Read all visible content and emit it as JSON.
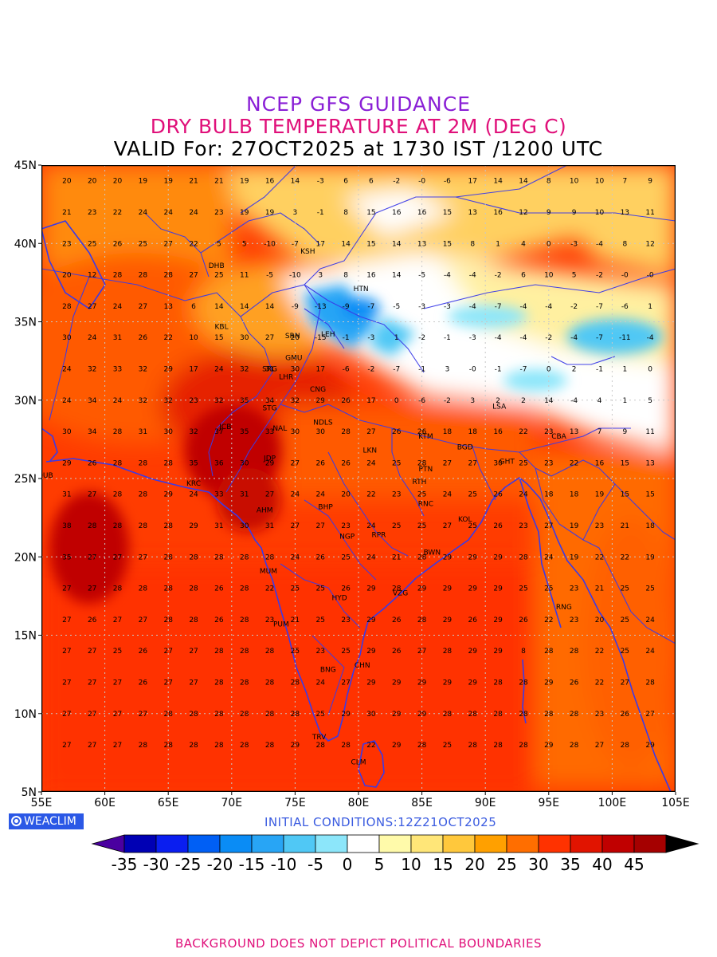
{
  "header": {
    "line1": "NCEP GFS GUIDANCE",
    "line2": "DRY BULB TEMPERATURE AT 2M (DEG C)",
    "line3": "VALID For: 27OCT2025 at 1730 IST /1200 UTC"
  },
  "axes": {
    "lat_labels": [
      "45N",
      "40N",
      "35N",
      "30N",
      "25N",
      "20N",
      "15N",
      "10N",
      "5N"
    ],
    "lon_labels": [
      "55E",
      "60E",
      "65E",
      "70E",
      "75E",
      "80E",
      "85E",
      "90E",
      "95E",
      "100E",
      "105E"
    ],
    "lat_range": [
      5,
      45
    ],
    "lon_range": [
      55,
      105
    ],
    "grid": "dotted"
  },
  "stations": [
    {
      "code": "KSH",
      "lon": 76.0,
      "lat": 39.5
    },
    {
      "code": "DHB",
      "lon": 68.8,
      "lat": 38.6
    },
    {
      "code": "HTN",
      "lon": 80.2,
      "lat": 37.1
    },
    {
      "code": "KBL",
      "lon": 69.2,
      "lat": 34.7
    },
    {
      "code": "LEH",
      "lon": 77.6,
      "lat": 34.2
    },
    {
      "code": "SRN",
      "lon": 74.8,
      "lat": 34.1
    },
    {
      "code": "GMU",
      "lon": 74.9,
      "lat": 32.7
    },
    {
      "code": "SRG",
      "lon": 73.0,
      "lat": 32.0
    },
    {
      "code": "LHR",
      "lon": 74.3,
      "lat": 31.5
    },
    {
      "code": "CNG",
      "lon": 76.8,
      "lat": 30.7
    },
    {
      "code": "STG",
      "lon": 73.0,
      "lat": 29.5
    },
    {
      "code": "LSA",
      "lon": 91.1,
      "lat": 29.6
    },
    {
      "code": "NDLS",
      "lon": 77.2,
      "lat": 28.6
    },
    {
      "code": "JCB",
      "lon": 69.5,
      "lat": 28.3
    },
    {
      "code": "NAL",
      "lon": 73.8,
      "lat": 28.2
    },
    {
      "code": "KTM",
      "lon": 85.3,
      "lat": 27.7
    },
    {
      "code": "CBA",
      "lon": 95.8,
      "lat": 27.7
    },
    {
      "code": "BGD",
      "lon": 88.4,
      "lat": 27.0
    },
    {
      "code": "LKN",
      "lon": 80.9,
      "lat": 26.8
    },
    {
      "code": "JDP",
      "lon": 73.0,
      "lat": 26.3
    },
    {
      "code": "GHT",
      "lon": 91.7,
      "lat": 26.1
    },
    {
      "code": "PTN",
      "lon": 85.3,
      "lat": 25.6
    },
    {
      "code": "DUB",
      "lon": 55.3,
      "lat": 25.2
    },
    {
      "code": "KRC",
      "lon": 67.0,
      "lat": 24.7
    },
    {
      "code": "RTH",
      "lon": 84.8,
      "lat": 24.8
    },
    {
      "code": "BHP",
      "lon": 77.4,
      "lat": 23.2
    },
    {
      "code": "AHM",
      "lon": 72.6,
      "lat": 23.0
    },
    {
      "code": "RNC",
      "lon": 85.3,
      "lat": 23.4
    },
    {
      "code": "KOL",
      "lon": 88.4,
      "lat": 22.4
    },
    {
      "code": "NGP",
      "lon": 79.1,
      "lat": 21.3
    },
    {
      "code": "RPR",
      "lon": 81.6,
      "lat": 21.4
    },
    {
      "code": "BWN",
      "lon": 85.8,
      "lat": 20.3
    },
    {
      "code": "MUM",
      "lon": 72.9,
      "lat": 19.1
    },
    {
      "code": "HYD",
      "lon": 78.5,
      "lat": 17.4
    },
    {
      "code": "VZG",
      "lon": 83.3,
      "lat": 17.7
    },
    {
      "code": "RNG",
      "lon": 96.2,
      "lat": 16.8
    },
    {
      "code": "PUM",
      "lon": 73.9,
      "lat": 15.7
    },
    {
      "code": "CHN",
      "lon": 80.3,
      "lat": 13.1
    },
    {
      "code": "BNG",
      "lon": 77.6,
      "lat": 12.8
    },
    {
      "code": "TRV",
      "lon": 76.9,
      "lat": 8.5
    },
    {
      "code": "CLM",
      "lon": 80.0,
      "lat": 6.9
    }
  ],
  "field_grid": {
    "lon_start": 55,
    "lat_start": 44,
    "step": 2,
    "rows": [
      [
        "",
        "20",
        "20",
        "20",
        "19",
        "19",
        "21",
        "21",
        "19",
        "16",
        "14",
        "-3",
        "6",
        "6",
        "-2",
        "-0",
        "-6",
        "17",
        "14",
        "14",
        "8",
        "10",
        "10",
        "7",
        "9"
      ],
      [
        "",
        "21",
        "23",
        "22",
        "24",
        "24",
        "24",
        "23",
        "19",
        "19",
        "3",
        "-1",
        "8",
        "15",
        "16",
        "16",
        "15",
        "13",
        "16",
        "12",
        "9",
        "9",
        "10",
        "13",
        "11"
      ],
      [
        "",
        "23",
        "25",
        "26",
        "25",
        "27",
        "22",
        "5",
        "5",
        "-10",
        "-7",
        "17",
        "14",
        "15",
        "14",
        "13",
        "15",
        "8",
        "1",
        "4",
        "0",
        "-3",
        "-4",
        "8",
        "12"
      ],
      [
        "",
        "20",
        "12",
        "28",
        "28",
        "28",
        "27",
        "25",
        "11",
        "-5",
        "-10",
        "3",
        "8",
        "16",
        "14",
        "-5",
        "-4",
        "-4",
        "-2",
        "6",
        "10",
        "5",
        "-2",
        "-0",
        "-0"
      ],
      [
        "",
        "28",
        "27",
        "24",
        "27",
        "13",
        "6",
        "14",
        "14",
        "14",
        "-9",
        "-13",
        "-9",
        "-7",
        "-5",
        "-3",
        "-3",
        "-4",
        "-7",
        "-4",
        "-4",
        "-2",
        "-7",
        "-6",
        "1"
      ],
      [
        "",
        "30",
        "24",
        "31",
        "26",
        "22",
        "10",
        "15",
        "30",
        "27",
        "20",
        "-15",
        "-1",
        "-3",
        "1",
        "-2",
        "-1",
        "-3",
        "-4",
        "-4",
        "-2",
        "-4",
        "-7",
        "-11",
        "-4"
      ],
      [
        "",
        "24",
        "32",
        "33",
        "32",
        "29",
        "17",
        "24",
        "32",
        "31",
        "30",
        "17",
        "-6",
        "-2",
        "-7",
        "-1",
        "3",
        "-0",
        "-1",
        "-7",
        "0",
        "2",
        "-1",
        "1",
        "0"
      ],
      [
        "",
        "24",
        "34",
        "24",
        "32",
        "32",
        "23",
        "32",
        "35",
        "34",
        "32",
        "29",
        "26",
        "17",
        "0",
        "-6",
        "-2",
        "3",
        "2",
        "2",
        "14",
        "-4",
        "4",
        "1",
        "5"
      ],
      [
        "",
        "30",
        "34",
        "28",
        "31",
        "30",
        "32",
        "37",
        "35",
        "33",
        "30",
        "30",
        "28",
        "27",
        "26",
        "26",
        "18",
        "18",
        "16",
        "22",
        "23",
        "13",
        "7",
        "9",
        "11"
      ],
      [
        "",
        "29",
        "26",
        "28",
        "28",
        "28",
        "35",
        "36",
        "30",
        "29",
        "27",
        "26",
        "26",
        "24",
        "25",
        "28",
        "27",
        "27",
        "30",
        "25",
        "23",
        "22",
        "16",
        "15",
        "13"
      ],
      [
        "",
        "31",
        "27",
        "28",
        "28",
        "29",
        "24",
        "33",
        "31",
        "27",
        "24",
        "24",
        "20",
        "22",
        "23",
        "25",
        "24",
        "25",
        "26",
        "24",
        "18",
        "18",
        "19",
        "15",
        "15"
      ],
      [
        "",
        "38",
        "28",
        "28",
        "28",
        "28",
        "29",
        "31",
        "30",
        "31",
        "27",
        "27",
        "23",
        "24",
        "25",
        "25",
        "27",
        "25",
        "26",
        "23",
        "27",
        "19",
        "23",
        "21",
        "18"
      ],
      [
        "",
        "35",
        "27",
        "27",
        "27",
        "28",
        "28",
        "28",
        "28",
        "28",
        "24",
        "26",
        "25",
        "24",
        "21",
        "28",
        "29",
        "29",
        "29",
        "28",
        "24",
        "19",
        "22",
        "22",
        "19"
      ],
      [
        "",
        "27",
        "27",
        "28",
        "28",
        "28",
        "28",
        "26",
        "28",
        "22",
        "25",
        "25",
        "26",
        "29",
        "28",
        "29",
        "29",
        "29",
        "29",
        "25",
        "25",
        "23",
        "21",
        "25",
        "25"
      ],
      [
        "",
        "27",
        "26",
        "27",
        "27",
        "28",
        "28",
        "26",
        "28",
        "23",
        "21",
        "25",
        "23",
        "29",
        "26",
        "28",
        "29",
        "26",
        "29",
        "26",
        "22",
        "23",
        "20",
        "25",
        "24"
      ],
      [
        "",
        "27",
        "27",
        "25",
        "26",
        "27",
        "27",
        "28",
        "28",
        "28",
        "25",
        "23",
        "25",
        "29",
        "26",
        "27",
        "28",
        "29",
        "29",
        "8",
        "28",
        "28",
        "22",
        "25",
        "24"
      ],
      [
        "",
        "27",
        "27",
        "27",
        "26",
        "27",
        "27",
        "28",
        "28",
        "28",
        "28",
        "24",
        "27",
        "29",
        "29",
        "29",
        "29",
        "29",
        "28",
        "28",
        "29",
        "26",
        "22",
        "27",
        "28"
      ],
      [
        "",
        "27",
        "27",
        "27",
        "27",
        "28",
        "28",
        "28",
        "28",
        "28",
        "28",
        "25",
        "29",
        "30",
        "29",
        "29",
        "28",
        "28",
        "28",
        "28",
        "28",
        "28",
        "23",
        "26",
        "27"
      ],
      [
        "",
        "27",
        "27",
        "27",
        "28",
        "28",
        "28",
        "28",
        "28",
        "28",
        "29",
        "28",
        "28",
        "22",
        "29",
        "28",
        "25",
        "28",
        "28",
        "28",
        "29",
        "28",
        "27",
        "28",
        "29"
      ]
    ]
  },
  "colorbar": {
    "labels": [
      "-35",
      "-30",
      "-25",
      "-20",
      "-15",
      "-10",
      "-5",
      "0",
      "5",
      "10",
      "15",
      "20",
      "25",
      "30",
      "35",
      "40",
      "45"
    ],
    "colors": [
      "#0000b4",
      "#0a1ef0",
      "#005ff5",
      "#0a8cf5",
      "#28a5f5",
      "#50c8f5",
      "#8ce6fa",
      "#ffffff",
      "#fffaaa",
      "#ffe678",
      "#ffc83c",
      "#ffa000",
      "#ff6e00",
      "#ff3200",
      "#e11400",
      "#c00000",
      "#a50000"
    ],
    "low_arrow_color": "#4a00a0",
    "high_arrow_color": "#000000"
  },
  "branding": {
    "logo_text": "WEACLIM"
  },
  "initial_conditions": "INITIAL CONDITIONS:12Z21OCT2025",
  "footer": "BACKGROUND DOES NOT DEPICT POLITICAL BOUNDARIES"
}
